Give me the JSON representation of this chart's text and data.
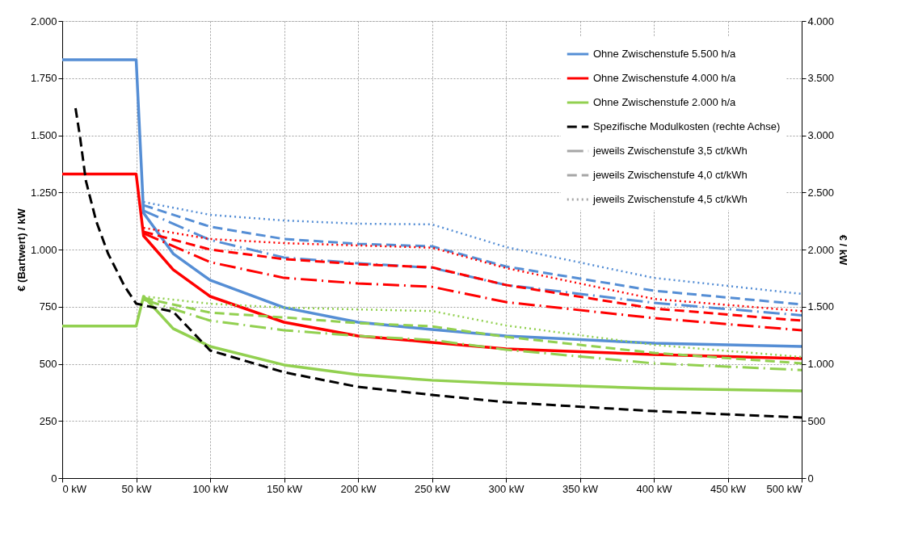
{
  "chart_data": {
    "type": "line",
    "xlabel": null,
    "ylabel": "€ (Bartwert) / kW",
    "y2label": "€ / kW",
    "xlim": [
      0,
      500
    ],
    "xticks": [
      {
        "value": 0,
        "label": "0 kW"
      },
      {
        "value": 50,
        "label": "50 kW"
      },
      {
        "value": 100,
        "label": "100 kW"
      },
      {
        "value": 150,
        "label": "150 kW"
      },
      {
        "value": 200,
        "label": "200 kW"
      },
      {
        "value": 250,
        "label": "250 kW"
      },
      {
        "value": 300,
        "label": "300 kW"
      },
      {
        "value": 350,
        "label": "350 kW"
      },
      {
        "value": 400,
        "label": "400 kW"
      },
      {
        "value": 450,
        "label": "450 kW"
      },
      {
        "value": 500,
        "label": "500 kW"
      }
    ],
    "ylim": [
      0,
      2000
    ],
    "yticks": [
      0,
      250,
      500,
      750,
      {
        "value": 1000,
        "label": "1.000"
      },
      {
        "value": 1250,
        "label": "1.250"
      },
      {
        "value": 1500,
        "label": "1.500"
      },
      {
        "value": 1750,
        "label": "1.750"
      },
      {
        "value": 2000,
        "label": "2.000"
      }
    ],
    "y2lim": [
      0,
      4000
    ],
    "y2ticks": [
      0,
      500,
      {
        "value": 1000,
        "label": "1.000"
      },
      {
        "value": 1500,
        "label": "1.500"
      },
      {
        "value": 2000,
        "label": "2.000"
      },
      {
        "value": 2500,
        "label": "2.500"
      },
      {
        "value": 3000,
        "label": "3.000"
      },
      {
        "value": 3500,
        "label": "3.500"
      },
      {
        "value": 4000,
        "label": "4.000"
      }
    ],
    "grid": true,
    "legend": "top right",
    "marker": "none",
    "series": [
      {
        "name": "Ohne Zwischenstufe 5.500 h/a",
        "color": "#558ed5",
        "line_style": "solid",
        "x": [
          0,
          50,
          55,
          75,
          100,
          150,
          200,
          250,
          300,
          400,
          500
        ],
        "values": [
          1830,
          1830,
          1160,
          982,
          866,
          746,
          682,
          650,
          622,
          590,
          576
        ]
      },
      {
        "name": "Ohne Zwischenstufe 4.000 h/a",
        "color": "#ff0000",
        "line_style": "solid",
        "x": [
          0,
          50,
          55,
          75,
          100,
          150,
          200,
          250,
          300,
          400,
          500
        ],
        "values": [
          1330,
          1330,
          1060,
          912,
          795,
          682,
          622,
          594,
          565,
          541,
          523
        ]
      },
      {
        "name": "Ohne Zwischenstufe 2.000 h/a",
        "color": "#92d050",
        "line_style": "solid",
        "x": [
          0,
          50,
          55,
          75,
          100,
          150,
          200,
          250,
          300,
          400,
          500
        ],
        "values": [
          665,
          665,
          795,
          654,
          576,
          495,
          452,
          428,
          413,
          392,
          382
        ]
      },
      {
        "name": "Spezifische Modulkosten (rechte Achse)",
        "color": "#000000",
        "line_style": "dashed",
        "axis": "y2",
        "x": [
          9,
          12,
          16,
          23,
          31,
          42,
          50,
          75,
          100,
          150,
          200,
          250,
          300,
          400,
          500
        ],
        "values": [
          3237,
          2989,
          2601,
          2247,
          1965,
          1682,
          1527,
          1456,
          1117,
          926,
          798,
          728,
          664,
          586,
          530
        ]
      },
      {
        "name": "jeweils Zwischenstufe 3,5 ct/kWh",
        "color": "#a6a6a6",
        "line_style": "dashdot"
      },
      {
        "name": "jeweils Zwischenstufe 4,0 ct/kWh",
        "color": "#a6a6a6",
        "line_style": "dashed"
      },
      {
        "name": "jeweils Zwischenstufe 4,5 ct/kWh",
        "color": "#a6a6a6",
        "line_style": "dotted"
      },
      {
        "color": "#558ed5",
        "line_style": "dashdot",
        "x": [
          55,
          100,
          150,
          200,
          250,
          300,
          400,
          500
        ],
        "values": [
          1170,
          1042,
          965,
          940,
          920,
          845,
          767,
          712
        ]
      },
      {
        "color": "#558ed5",
        "line_style": "dashed",
        "x": [
          55,
          100,
          150,
          200,
          250,
          300,
          400,
          500
        ],
        "values": [
          1194,
          1100,
          1046,
          1025,
          1014,
          926,
          820,
          760
        ]
      },
      {
        "color": "#558ed5",
        "line_style": "dotted",
        "x": [
          55,
          100,
          150,
          200,
          250,
          300,
          400,
          500
        ],
        "values": [
          1208,
          1152,
          1127,
          1113,
          1110,
          1011,
          876,
          806
        ]
      },
      {
        "color": "#ff0000",
        "line_style": "dashdot",
        "x": [
          55,
          100,
          150,
          200,
          250,
          300,
          400,
          500
        ],
        "values": [
          1071,
          945,
          876,
          852,
          837,
          770,
          700,
          647
        ]
      },
      {
        "color": "#ff0000",
        "line_style": "dashed",
        "x": [
          55,
          100,
          150,
          200,
          250,
          300,
          400,
          500
        ],
        "values": [
          1078,
          1000,
          958,
          936,
          922,
          845,
          742,
          689
        ]
      },
      {
        "color": "#ff0000",
        "line_style": "dotted",
        "x": [
          55,
          100,
          150,
          200,
          250,
          300,
          400,
          500
        ],
        "values": [
          1095,
          1046,
          1028,
          1018,
          1008,
          919,
          784,
          731
        ]
      },
      {
        "color": "#92d050",
        "line_style": "dashdot",
        "x": [
          55,
          100,
          150,
          200,
          250,
          300,
          400,
          500
        ],
        "values": [
          781,
          689,
          647,
          622,
          604,
          562,
          502,
          473
        ]
      },
      {
        "color": "#92d050",
        "line_style": "dashed",
        "x": [
          55,
          100,
          150,
          200,
          250,
          300,
          400,
          500
        ],
        "values": [
          788,
          724,
          703,
          678,
          664,
          618,
          548,
          502
        ]
      },
      {
        "color": "#92d050",
        "line_style": "dotted",
        "x": [
          55,
          100,
          150,
          200,
          250,
          300,
          400,
          500
        ],
        "values": [
          795,
          763,
          746,
          738,
          731,
          668,
          583,
          530
        ]
      }
    ]
  }
}
